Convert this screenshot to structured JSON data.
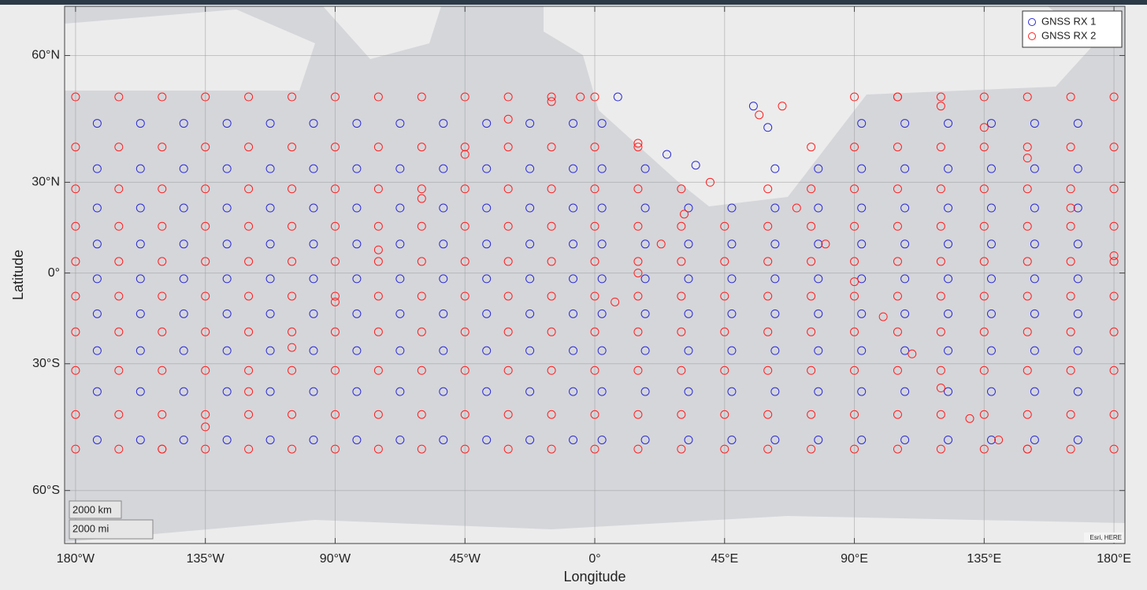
{
  "chart_data": {
    "type": "scatter",
    "projection": "mercator",
    "xlabel": "Longitude",
    "ylabel": "Latitude",
    "xlim": [
      -183.8,
      183.8
    ],
    "ylim": [
      -68,
      67.5
    ],
    "xticks": [
      {
        "value": -180,
        "label": "180°W"
      },
      {
        "value": -135,
        "label": "135°W"
      },
      {
        "value": -90,
        "label": "90°W"
      },
      {
        "value": -45,
        "label": "45°W"
      },
      {
        "value": 0,
        "label": "0°"
      },
      {
        "value": 45,
        "label": "45°E"
      },
      {
        "value": 90,
        "label": "90°E"
      },
      {
        "value": 135,
        "label": "135°E"
      },
      {
        "value": 180,
        "label": "180°E"
      }
    ],
    "yticks": [
      {
        "value": 60,
        "label": "60°N"
      },
      {
        "value": 30,
        "label": "30°N"
      },
      {
        "value": 0,
        "label": "0°"
      },
      {
        "value": -30,
        "label": "30°S"
      },
      {
        "value": -60,
        "label": "60°S"
      }
    ],
    "grid": true,
    "legend": "upper right",
    "scale_bar": [
      "2000 km",
      "2000 mi"
    ],
    "attribution": "Esri, HERE",
    "series": [
      {
        "name": "GNSS RX 1",
        "color": "#2b2bd6",
        "x": [
          -172.5,
          -157.5,
          -142.5,
          -127.5,
          -112.5,
          -97.5,
          -82.5,
          -67.5,
          -52.5,
          -37.5,
          -22.5,
          -7.5,
          2.5,
          92.5,
          107.5,
          122.5,
          137.5,
          152.5,
          167.5,
          -172.5,
          -157.5,
          -142.5,
          -127.5,
          -112.5,
          -97.5,
          -82.5,
          -67.5,
          -52.5,
          -37.5,
          -22.5,
          -7.5,
          2.5,
          17.5,
          62.5,
          77.5,
          92.5,
          107.5,
          122.5,
          137.5,
          152.5,
          167.5,
          -172.5,
          -157.5,
          -142.5,
          -127.5,
          -112.5,
          -97.5,
          -82.5,
          -67.5,
          -52.5,
          -37.5,
          -22.5,
          -7.5,
          2.5,
          17.5,
          32.5,
          47.5,
          62.5,
          77.5,
          92.5,
          107.5,
          122.5,
          137.5,
          152.5,
          167.5,
          -172.5,
          -157.5,
          -142.5,
          -127.5,
          -112.5,
          -97.5,
          -82.5,
          -67.5,
          -52.5,
          -37.5,
          -22.5,
          -7.5,
          2.5,
          17.5,
          32.5,
          47.5,
          62.5,
          77.5,
          92.5,
          107.5,
          122.5,
          137.5,
          152.5,
          167.5,
          -172.5,
          -157.5,
          -142.5,
          -127.5,
          -112.5,
          -97.5,
          -82.5,
          -67.5,
          -52.5,
          -37.5,
          -22.5,
          -7.5,
          2.5,
          17.5,
          32.5,
          47.5,
          62.5,
          77.5,
          92.5,
          107.5,
          122.5,
          137.5,
          152.5,
          167.5,
          -172.5,
          -157.5,
          -142.5,
          -127.5,
          -112.5,
          -97.5,
          -82.5,
          -67.5,
          -52.5,
          -37.5,
          -22.5,
          -7.5,
          2.5,
          17.5,
          32.5,
          47.5,
          62.5,
          77.5,
          92.5,
          107.5,
          122.5,
          137.5,
          152.5,
          167.5,
          -172.5,
          -157.5,
          -142.5,
          -127.5,
          -112.5,
          -97.5,
          -82.5,
          -67.5,
          -52.5,
          -37.5,
          -22.5,
          -7.5,
          2.5,
          17.5,
          32.5,
          47.5,
          62.5,
          77.5,
          92.5,
          107.5,
          122.5,
          137.5,
          152.5,
          167.5,
          -172.5,
          -157.5,
          -142.5,
          -127.5,
          -112.5,
          -97.5,
          -82.5,
          -67.5,
          -52.5,
          -37.5,
          -22.5,
          -7.5,
          2.5,
          17.5,
          32.5,
          47.5,
          62.5,
          77.5,
          92.5,
          107.5,
          122.5,
          137.5,
          152.5,
          167.5,
          -172.5,
          -157.5,
          -142.5,
          -127.5,
          -112.5,
          -97.5,
          -82.5,
          -67.5,
          -52.5,
          -37.5,
          -22.5,
          -7.5,
          2.5,
          17.5,
          32.5,
          47.5,
          62.5,
          77.5,
          92.5,
          107.5,
          122.5,
          137.5,
          152.5,
          167.5,
          25,
          35,
          55,
          60,
          8
        ],
        "values": [
          46,
          46,
          46,
          46,
          46,
          46,
          46,
          46,
          46,
          46,
          46,
          46,
          46,
          46,
          46,
          46,
          46,
          46,
          46,
          34,
          34,
          34,
          34,
          34,
          34,
          34,
          34,
          34,
          34,
          34,
          34,
          34,
          34,
          34,
          34,
          34,
          34,
          34,
          34,
          34,
          34,
          22,
          22,
          22,
          22,
          22,
          22,
          22,
          22,
          22,
          22,
          22,
          22,
          22,
          22,
          22,
          22,
          22,
          22,
          22,
          22,
          22,
          22,
          22,
          22,
          10,
          10,
          10,
          10,
          10,
          10,
          10,
          10,
          10,
          10,
          10,
          10,
          10,
          10,
          10,
          10,
          10,
          10,
          10,
          10,
          10,
          10,
          10,
          10,
          -2,
          -2,
          -2,
          -2,
          -2,
          -2,
          -2,
          -2,
          -2,
          -2,
          -2,
          -2,
          -2,
          -2,
          -2,
          -2,
          -2,
          -2,
          -2,
          -2,
          -2,
          -2,
          -2,
          -2,
          -14,
          -14,
          -14,
          -14,
          -14,
          -14,
          -14,
          -14,
          -14,
          -14,
          -14,
          -14,
          -14,
          -14,
          -14,
          -14,
          -14,
          -14,
          -14,
          -14,
          -14,
          -14,
          -14,
          -14,
          -26,
          -26,
          -26,
          -26,
          -26,
          -26,
          -26,
          -26,
          -26,
          -26,
          -26,
          -26,
          -26,
          -26,
          -26,
          -26,
          -26,
          -26,
          -26,
          -26,
          -26,
          -26,
          -26,
          -26,
          -38,
          -38,
          -38,
          -38,
          -38,
          -38,
          -38,
          -38,
          -38,
          -38,
          -38,
          -38,
          -38,
          -38,
          -38,
          -38,
          -38,
          -38,
          -38,
          -38,
          -38,
          -38,
          -38,
          -38,
          -50,
          -50,
          -50,
          -50,
          -50,
          -50,
          -50,
          -50,
          -50,
          -50,
          -50,
          -50,
          -50,
          -50,
          -50,
          -50,
          -50,
          -50,
          -50,
          -50,
          -50,
          -50,
          -50,
          -50,
          38,
          35,
          50,
          45,
          52
        ]
      },
      {
        "name": "GNSS RX 2",
        "color": "#ff2020",
        "x": [
          -180,
          -165,
          -150,
          -135,
          -120,
          -105,
          -90,
          -75,
          -60,
          -45,
          -30,
          -15,
          0,
          90,
          105,
          120,
          135,
          150,
          165,
          180,
          -180,
          -165,
          -150,
          -135,
          -120,
          -105,
          -90,
          -75,
          -60,
          -45,
          -30,
          -15,
          0,
          15,
          75,
          90,
          105,
          120,
          135,
          150,
          165,
          180,
          -180,
          -165,
          -150,
          -135,
          -120,
          -105,
          -90,
          -75,
          -60,
          -45,
          -30,
          -15,
          0,
          15,
          30,
          60,
          75,
          90,
          105,
          120,
          135,
          150,
          165,
          180,
          -180,
          -165,
          -150,
          -135,
          -120,
          -105,
          -90,
          -75,
          -60,
          -45,
          -30,
          -15,
          0,
          15,
          30,
          45,
          60,
          75,
          90,
          105,
          120,
          135,
          150,
          165,
          180,
          -180,
          -165,
          -150,
          -135,
          -120,
          -105,
          -90,
          -75,
          -60,
          -45,
          -30,
          -15,
          0,
          15,
          30,
          45,
          60,
          75,
          90,
          105,
          120,
          135,
          150,
          165,
          180,
          -180,
          -165,
          -150,
          -135,
          -120,
          -105,
          -90,
          -75,
          -60,
          -45,
          -30,
          -15,
          0,
          15,
          30,
          45,
          60,
          75,
          90,
          105,
          120,
          135,
          150,
          165,
          180,
          -180,
          -165,
          -150,
          -135,
          -120,
          -105,
          -90,
          -75,
          -60,
          -45,
          -30,
          -15,
          0,
          15,
          30,
          45,
          60,
          75,
          90,
          105,
          120,
          135,
          150,
          165,
          180,
          -180,
          -165,
          -150,
          -135,
          -120,
          -105,
          -90,
          -75,
          -60,
          -45,
          -30,
          -15,
          0,
          15,
          30,
          45,
          60,
          75,
          90,
          105,
          120,
          135,
          150,
          165,
          180,
          -180,
          -165,
          -150,
          -135,
          -120,
          -105,
          -90,
          -75,
          -60,
          -45,
          -30,
          -15,
          0,
          15,
          30,
          45,
          60,
          75,
          90,
          105,
          120,
          135,
          150,
          165,
          180,
          -180,
          -165,
          -150,
          -135,
          -120,
          -105,
          -90,
          -75,
          -60,
          -45,
          -30,
          -15,
          0,
          15,
          30,
          45,
          60,
          75,
          90,
          105,
          120,
          135,
          150,
          165,
          180,
          -150,
          -135,
          -120,
          -105,
          -90,
          -75,
          -60,
          -45,
          -30,
          -15,
          -5,
          7,
          15,
          23,
          31,
          40,
          70,
          80,
          90,
          100,
          110,
          120,
          130,
          140,
          150,
          105,
          120,
          135,
          150,
          165,
          180,
          57,
          65,
          15
        ],
        "values": [
          52,
          52,
          52,
          52,
          52,
          52,
          52,
          52,
          52,
          52,
          52,
          52,
          52,
          52,
          52,
          52,
          52,
          52,
          52,
          52,
          40,
          40,
          40,
          40,
          40,
          40,
          40,
          40,
          40,
          40,
          40,
          40,
          40,
          40,
          40,
          40,
          40,
          40,
          40,
          40,
          40,
          40,
          28,
          28,
          28,
          28,
          28,
          28,
          28,
          28,
          28,
          28,
          28,
          28,
          28,
          28,
          28,
          28,
          28,
          28,
          28,
          28,
          28,
          28,
          28,
          28,
          16,
          16,
          16,
          16,
          16,
          16,
          16,
          16,
          16,
          16,
          16,
          16,
          16,
          16,
          16,
          16,
          16,
          16,
          16,
          16,
          16,
          16,
          16,
          16,
          16,
          4,
          4,
          4,
          4,
          4,
          4,
          4,
          4,
          4,
          4,
          4,
          4,
          4,
          4,
          4,
          4,
          4,
          4,
          4,
          4,
          4,
          4,
          4,
          4,
          4,
          -8,
          -8,
          -8,
          -8,
          -8,
          -8,
          -8,
          -8,
          -8,
          -8,
          -8,
          -8,
          -8,
          -8,
          -8,
          -8,
          -8,
          -8,
          -8,
          -8,
          -8,
          -8,
          -8,
          -8,
          -8,
          -20,
          -20,
          -20,
          -20,
          -20,
          -20,
          -20,
          -20,
          -20,
          -20,
          -20,
          -20,
          -20,
          -20,
          -20,
          -20,
          -20,
          -20,
          -20,
          -20,
          -20,
          -20,
          -20,
          -20,
          -20,
          -32,
          -32,
          -32,
          -32,
          -32,
          -32,
          -32,
          -32,
          -32,
          -32,
          -32,
          -32,
          -32,
          -32,
          -32,
          -32,
          -32,
          -32,
          -32,
          -32,
          -32,
          -32,
          -32,
          -32,
          -32,
          -44,
          -44,
          -44,
          -44,
          -44,
          -44,
          -44,
          -44,
          -44,
          -44,
          -44,
          -44,
          -44,
          -44,
          -44,
          -44,
          -44,
          -44,
          -44,
          -44,
          -44,
          -44,
          -44,
          -44,
          -44,
          -52,
          -52,
          -52,
          -52,
          -52,
          -52,
          -52,
          -52,
          -52,
          -52,
          -52,
          -52,
          -52,
          -52,
          -52,
          -52,
          -52,
          -52,
          -52,
          -52,
          -52,
          -52,
          -52,
          -52,
          -52,
          -52,
          -47,
          -38,
          -25,
          -10,
          8,
          25,
          38,
          47,
          51,
          52,
          -10,
          0,
          10,
          20,
          30,
          22,
          10,
          -3,
          -15,
          -27,
          -37,
          -45,
          -50,
          -52,
          52,
          50,
          45,
          37,
          22,
          6,
          48,
          50,
          41
        ]
      }
    ]
  }
}
